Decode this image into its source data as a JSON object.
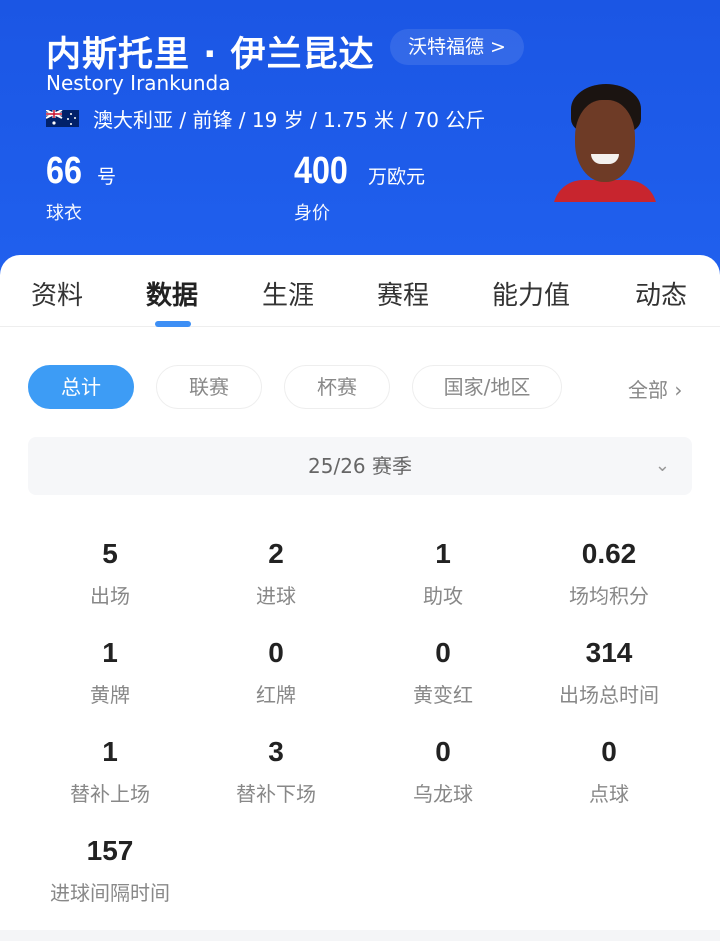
{
  "player": {
    "name": "内斯托里 · 伊兰昆达",
    "team_link": "沃特福德 >",
    "english_name": "Nestory Irankunda",
    "country": "澳大利亚",
    "info_rest": "/ 前锋 / 19 岁 / 1.75 米 / 70 公斤",
    "flag_icon": "australia-flag",
    "shirt_number": "66",
    "shirt_unit": "号",
    "shirt_label": "球衣",
    "value": "400",
    "value_unit": "万欧元",
    "value_label": "身价"
  },
  "colors": {
    "header": "#1b56e4",
    "accent": "#3d9cf5"
  },
  "tabs": [
    {
      "label": "资料"
    },
    {
      "label": "数据",
      "active": true
    },
    {
      "label": "生涯"
    },
    {
      "label": "赛程"
    },
    {
      "label": "能力值"
    },
    {
      "label": "动态"
    }
  ],
  "filters": [
    {
      "label": "总计",
      "active": true
    },
    {
      "label": "联赛"
    },
    {
      "label": "杯赛"
    },
    {
      "label": "国家/地区"
    }
  ],
  "filter_all": "全部 ›",
  "season": "25/26 赛季",
  "stats": [
    {
      "value": "5",
      "label": "出场"
    },
    {
      "value": "2",
      "label": "进球"
    },
    {
      "value": "1",
      "label": "助攻"
    },
    {
      "value": "0.62",
      "label": "场均积分"
    },
    {
      "value": "1",
      "label": "黄牌"
    },
    {
      "value": "0",
      "label": "红牌"
    },
    {
      "value": "0",
      "label": "黄变红"
    },
    {
      "value": "314",
      "label": "出场总时间"
    },
    {
      "value": "1",
      "label": "替补上场"
    },
    {
      "value": "3",
      "label": "替补下场"
    },
    {
      "value": "0",
      "label": "乌龙球"
    },
    {
      "value": "0",
      "label": "点球"
    },
    {
      "value": "157",
      "label": "进球间隔时间"
    }
  ]
}
